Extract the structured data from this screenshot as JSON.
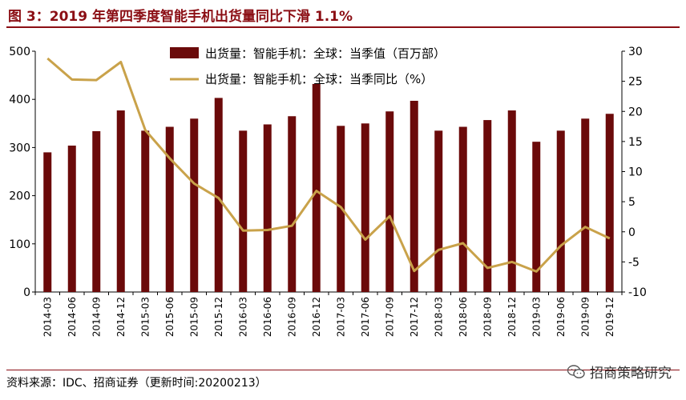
{
  "header": {
    "title": "图 3：2019 年第四季度智能手机出货量同比下滑 1.1%"
  },
  "footer": {
    "source": "资料来源：IDC、招商证券（更新时间:20200213）",
    "watermark": "招商策略研究",
    "watermark_icon": "wechat-logo-icon"
  },
  "colors": {
    "bar": "#6B0A0A",
    "line": "#C9A24A",
    "accent": "#8B0E14"
  },
  "chart_data": {
    "type": "bar",
    "categories": [
      "2014-03",
      "2014-06",
      "2014-09",
      "2014-12",
      "2015-03",
      "2015-06",
      "2015-09",
      "2015-12",
      "2016-03",
      "2016-06",
      "2016-09",
      "2016-12",
      "2017-03",
      "2017-06",
      "2017-09",
      "2017-12",
      "2018-03",
      "2018-06",
      "2018-09",
      "2018-12",
      "2019-03",
      "2019-06",
      "2019-09",
      "2019-12"
    ],
    "series": [
      {
        "name": "出货量：智能手机：全球：当季值（百万部）",
        "type": "bar",
        "axis": "left",
        "values": [
          290,
          304,
          334,
          377,
          335,
          343,
          360,
          403,
          335,
          348,
          365,
          432,
          345,
          350,
          375,
          397,
          335,
          343,
          357,
          377,
          312,
          335,
          360,
          370
        ]
      },
      {
        "name": "出货量：智能手机：全球：当季同比（%）",
        "type": "line",
        "axis": "right",
        "values": [
          28.8,
          25.3,
          25.2,
          28.2,
          16.9,
          12.2,
          8.0,
          5.6,
          0.2,
          0.3,
          1.0,
          6.8,
          4.1,
          -1.3,
          2.6,
          -6.5,
          -3.0,
          -1.9,
          -6.0,
          -5.0,
          -6.6,
          -2.3,
          0.8,
          -1.1
        ]
      }
    ],
    "y_left": {
      "ylim": [
        0,
        500
      ],
      "ticks": [
        0,
        100,
        200,
        300,
        400,
        500
      ]
    },
    "y_right": {
      "ylim": [
        -10,
        30
      ],
      "ticks": [
        -10,
        -5,
        0,
        5,
        10,
        15,
        20,
        25,
        30
      ]
    },
    "legend_position": "top-center",
    "grid": false
  }
}
